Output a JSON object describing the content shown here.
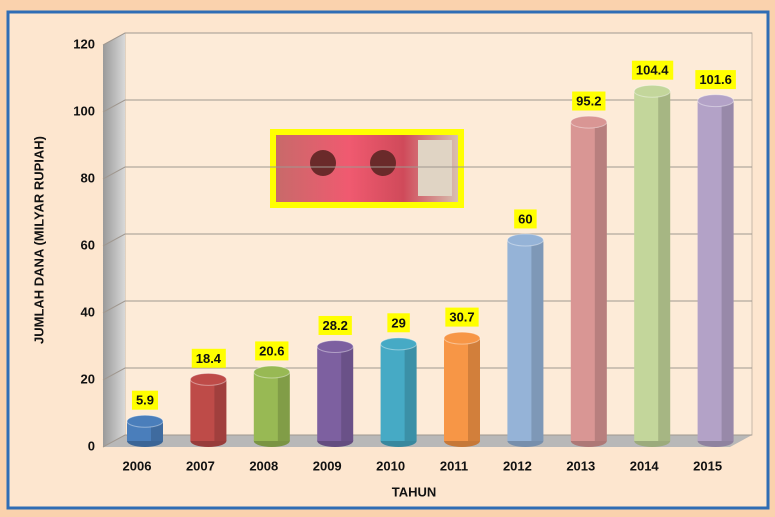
{
  "chart_data": {
    "type": "bar",
    "y_label": "JUMLAH  DANA (MILYAR RUPIAH)",
    "x_label": "TAHUN",
    "categories": [
      "2006",
      "2007",
      "2008",
      "2009",
      "2010",
      "2011",
      "2012",
      "2013",
      "2014",
      "2015"
    ],
    "values": [
      5.9,
      18.4,
      20.6,
      28.2,
      29,
      30.7,
      60,
      95.2,
      104.4,
      101.6
    ],
    "colors": [
      "#4a7ebb",
      "#be4b48",
      "#98b954",
      "#7d60a0",
      "#46aac5",
      "#f79646",
      "#95b3d7",
      "#d99694",
      "#c3d69b",
      "#b3a2c7"
    ],
    "ylim": [
      0,
      120
    ],
    "yticks": [
      0,
      20,
      40,
      60,
      80,
      100,
      120
    ],
    "grid": true
  }
}
